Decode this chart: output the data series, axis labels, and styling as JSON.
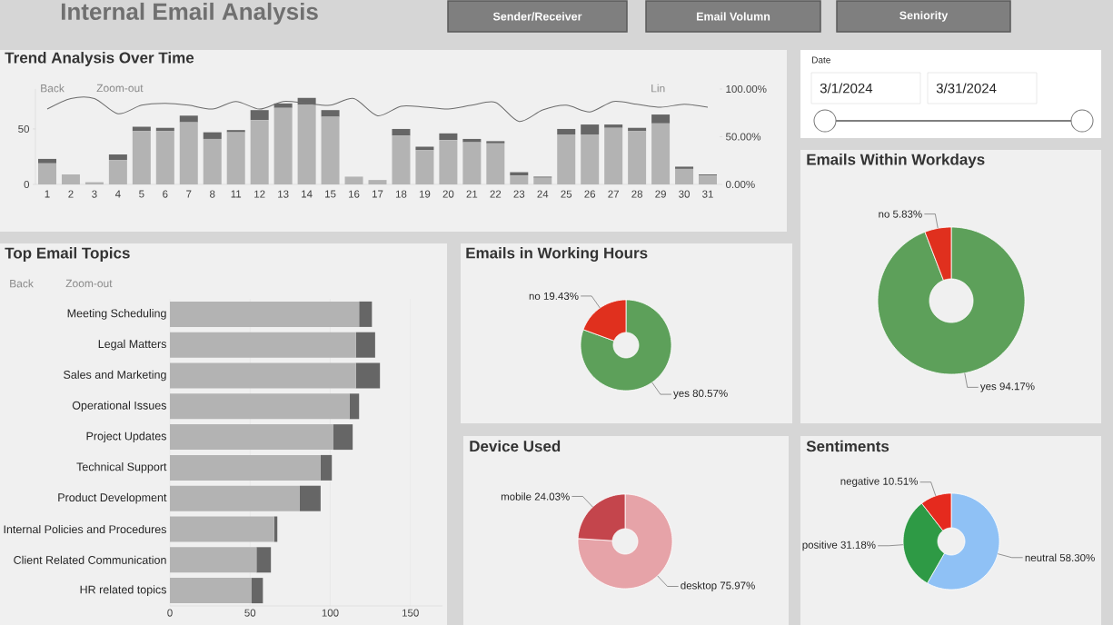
{
  "chart_data": [
    {
      "type": "other",
      "title": "Internal Email Analysis",
      "annotations": [
        "Sender/Receiver",
        "Email Volumn",
        "Seniority"
      ]
    },
    {
      "type": "bar",
      "title": "Trend Analysis Over Time",
      "stacked": true,
      "annotations": [
        "Back",
        "Zoom-out",
        "Lin"
      ],
      "categories": [
        "1",
        "2",
        "3",
        "4",
        "5",
        "6",
        "7",
        "8",
        "11",
        "12",
        "13",
        "14",
        "15",
        "16",
        "17",
        "18",
        "19",
        "20",
        "21",
        "22",
        "23",
        "24",
        "25",
        "26",
        "27",
        "28",
        "29",
        "30",
        "31"
      ],
      "series": [
        {
          "color": "#b3b3b3",
          "values": [
            19,
            9,
            2,
            22,
            48,
            48,
            56,
            41,
            47,
            58,
            69,
            72,
            61,
            7,
            4,
            44,
            31,
            40,
            38,
            37,
            8,
            6,
            45,
            45,
            51,
            48,
            55,
            14,
            8
          ]
        },
        {
          "color": "#666666",
          "values": [
            4,
            0,
            0,
            5,
            4,
            3,
            6,
            6,
            2,
            9,
            4,
            6,
            6,
            0,
            0,
            6,
            3,
            6,
            3,
            2,
            3,
            1,
            5,
            9,
            3,
            3,
            8,
            2,
            1
          ]
        },
        {
          "type": "line",
          "axis": "y2",
          "color": "#6b6b6b",
          "values": [
            79,
            90,
            90,
            74,
            83,
            85,
            83,
            79,
            87,
            79,
            87,
            85,
            83,
            90,
            72,
            82,
            81,
            79,
            83,
            86,
            66,
            78,
            83,
            76,
            87,
            84,
            81,
            84,
            81
          ]
        }
      ],
      "ylim": [
        0,
        86
      ],
      "yticks": [
        0,
        50
      ],
      "y2lim": [
        0,
        100
      ],
      "y2ticks": [
        {
          "value": 0,
          "label": "0.00%"
        },
        {
          "value": 50,
          "label": "50.00%"
        },
        {
          "value": 100,
          "label": "100.00%"
        }
      ]
    },
    {
      "type": "other",
      "title": "Date",
      "annotations": [
        "3/1/2024",
        "3/31/2024"
      ]
    },
    {
      "type": "donut",
      "title": "Emails Within Workdays",
      "categories": [
        "yes",
        "no"
      ],
      "values": [
        94.17,
        5.83
      ],
      "value_labels": [
        "94.17%",
        "5.83%"
      ],
      "colors": [
        "#5da05a",
        "#e0301e"
      ]
    },
    {
      "type": "bar",
      "title": "Top Email Topics",
      "orientation": "horizontal",
      "stacked": true,
      "grid": "x",
      "annotations": [
        "Back",
        "Zoom-out"
      ],
      "categories": [
        "Meeting Scheduling",
        "Legal Matters",
        "Sales and Marketing",
        "Operational Issues",
        "Project Updates",
        "Technical Support",
        "Product Development",
        "Internal Policies and Procedures",
        "Client Related Communication",
        "HR related topics"
      ],
      "series": [
        {
          "color": "#b3b3b3",
          "values": [
            118,
            116,
            116,
            112,
            102,
            94,
            81,
            65,
            54,
            51
          ]
        },
        {
          "color": "#666666",
          "values": [
            8,
            12,
            15,
            6,
            12,
            7,
            13,
            2,
            9,
            7
          ]
        }
      ],
      "xlim": [
        0,
        170
      ],
      "xticks": [
        0,
        50,
        100,
        150
      ]
    },
    {
      "type": "donut",
      "title": "Emails in Working Hours",
      "categories": [
        "yes",
        "no"
      ],
      "values": [
        80.57,
        19.43
      ],
      "value_labels": [
        "80.57%",
        "19.43%"
      ],
      "colors": [
        "#5da05a",
        "#e0301e"
      ]
    },
    {
      "type": "donut",
      "title": "Device Used",
      "categories": [
        "desktop",
        "mobile"
      ],
      "values": [
        75.97,
        24.03
      ],
      "value_labels": [
        "75.97%",
        "24.03%"
      ],
      "colors": [
        "#e6a3a8",
        "#c4454c"
      ]
    },
    {
      "type": "donut",
      "title": "Sentiments",
      "categories": [
        "neutral",
        "positive",
        "negative"
      ],
      "values": [
        58.3,
        31.18,
        10.51
      ],
      "value_labels": [
        "58.30%",
        "31.18%",
        "10.51%"
      ],
      "colors": [
        "#8fc1f5",
        "#2e9a45",
        "#e52a1e"
      ]
    }
  ]
}
